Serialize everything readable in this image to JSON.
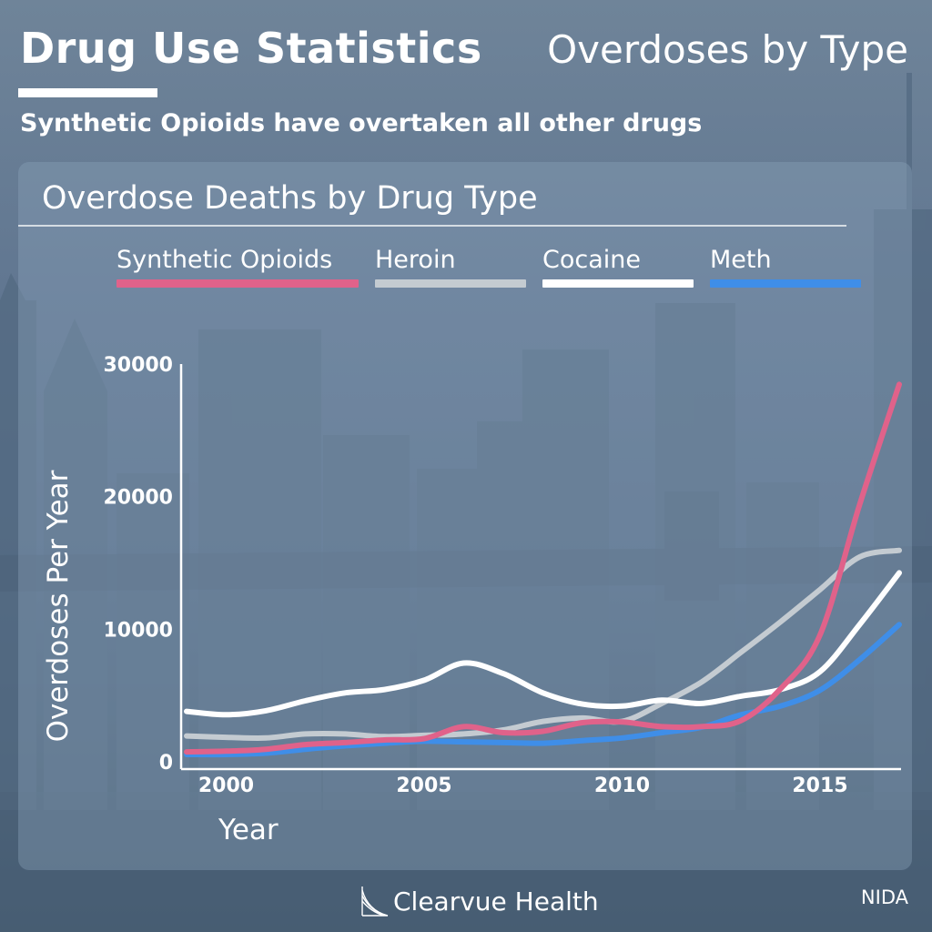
{
  "header": {
    "title": "Drug Use Statistics",
    "subtitle": "Overdoses by Type",
    "tagline": "Synthetic Opioids have overtaken all other drugs"
  },
  "footer": {
    "brand": "Clearvue Health",
    "source": "NIDA"
  },
  "colors": {
    "synthetic_opioids": "#e0628a",
    "heroin": "#c4cbd1",
    "cocaine": "#ffffff",
    "meth": "#3f8ee8"
  },
  "chart_data": {
    "type": "line",
    "title": "Overdose Deaths by Drug Type",
    "xlabel": "Year",
    "ylabel": "Overdoses Per Year",
    "xlim": [
      1999,
      2017
    ],
    "ylim": [
      0,
      30000
    ],
    "xticks": [
      2000,
      2005,
      2010,
      2015
    ],
    "yticks": [
      0,
      10000,
      20000,
      30000
    ],
    "legend_position": "top",
    "grid": false,
    "x": [
      1999,
      2000,
      2001,
      2002,
      2003,
      2004,
      2005,
      2006,
      2007,
      2008,
      2009,
      2010,
      2011,
      2012,
      2013,
      2014,
      2015,
      2016,
      2017
    ],
    "series": [
      {
        "name": "Synthetic Opioids",
        "color": "#e0628a",
        "values": [
          750,
          800,
          950,
          1300,
          1450,
          1650,
          1750,
          2650,
          2200,
          2300,
          2950,
          3000,
          2650,
          2650,
          3100,
          5500,
          9580,
          19400,
          28470
        ]
      },
      {
        "name": "Heroin",
        "color": "#c4cbd1",
        "values": [
          1950,
          1850,
          1800,
          2100,
          2100,
          1900,
          2000,
          2100,
          2400,
          3050,
          3300,
          3050,
          4400,
          6000,
          8250,
          10550,
          12990,
          15450,
          15950
        ]
      },
      {
        "name": "Cocaine",
        "color": "#ffffff",
        "values": [
          3800,
          3550,
          3850,
          4600,
          5200,
          5450,
          6150,
          7450,
          6650,
          5200,
          4350,
          4200,
          4650,
          4400,
          4950,
          5450,
          6800,
          10350,
          14250
        ]
      },
      {
        "name": "Meth",
        "color": "#3f8ee8",
        "values": [
          550,
          550,
          650,
          950,
          1200,
          1400,
          1550,
          1500,
          1450,
          1400,
          1600,
          1800,
          2200,
          2600,
          3550,
          4200,
          5400,
          7700,
          10350
        ]
      }
    ]
  }
}
